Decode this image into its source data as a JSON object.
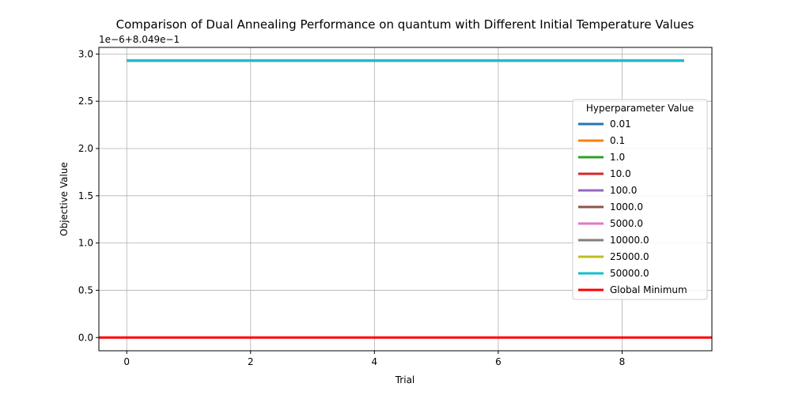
{
  "chart_data": {
    "type": "line",
    "title": "Comparison of Dual Annealing Performance on quantum with Different Initial Temperature Values",
    "xlabel": "Trial",
    "ylabel": "Objective Value",
    "offset_label": "1e−6+8.049e−1",
    "xlim": [
      -0.45,
      9.45
    ],
    "ylim": [
      -0.14,
      3.07
    ],
    "xticks": [
      0,
      2,
      4,
      6,
      8
    ],
    "xtick_labels": [
      "0",
      "2",
      "4",
      "6",
      "8"
    ],
    "yticks": [
      0.0,
      0.5,
      1.0,
      1.5,
      2.0,
      2.5,
      3.0
    ],
    "ytick_labels": [
      "0.0",
      "0.5",
      "1.0",
      "1.5",
      "2.0",
      "2.5",
      "3.0"
    ],
    "grid": true,
    "legend_title": "Hyperparameter Value",
    "legend_position": "center-right",
    "x": [
      0,
      1,
      2,
      3,
      4,
      5,
      6,
      7,
      8,
      9
    ],
    "series": [
      {
        "name": "0.01",
        "color": "#1f77b4",
        "values": [
          2.93,
          2.93,
          2.93,
          2.93,
          2.93,
          2.93,
          2.93,
          2.93,
          2.93,
          2.93
        ]
      },
      {
        "name": "0.1",
        "color": "#ff7f0e",
        "values": [
          2.93,
          2.93,
          2.93,
          2.93,
          2.93,
          2.93,
          2.93,
          2.93,
          2.93,
          2.93
        ]
      },
      {
        "name": "1.0",
        "color": "#2ca02c",
        "values": [
          2.93,
          2.93,
          2.93,
          2.93,
          2.93,
          2.93,
          2.93,
          2.93,
          2.93,
          2.93
        ]
      },
      {
        "name": "10.0",
        "color": "#d62728",
        "values": [
          2.93,
          2.93,
          2.93,
          2.93,
          2.93,
          2.93,
          2.93,
          2.93,
          2.93,
          2.93
        ]
      },
      {
        "name": "100.0",
        "color": "#9467bd",
        "values": [
          2.93,
          2.93,
          2.93,
          2.93,
          2.93,
          2.93,
          2.93,
          2.93,
          2.93,
          2.93
        ]
      },
      {
        "name": "1000.0",
        "color": "#8c564b",
        "values": [
          2.93,
          2.93,
          2.93,
          2.93,
          2.93,
          2.93,
          2.93,
          2.93,
          2.93,
          2.93
        ]
      },
      {
        "name": "5000.0",
        "color": "#e377c2",
        "values": [
          2.93,
          2.93,
          2.93,
          2.93,
          2.93,
          2.93,
          2.93,
          2.93,
          2.93,
          2.93
        ]
      },
      {
        "name": "10000.0",
        "color": "#7f7f7f",
        "values": [
          2.93,
          2.93,
          2.93,
          2.93,
          2.93,
          2.93,
          2.93,
          2.93,
          2.93,
          2.93
        ]
      },
      {
        "name": "25000.0",
        "color": "#bcbd22",
        "values": [
          2.93,
          2.93,
          2.93,
          2.93,
          2.93,
          2.93,
          2.93,
          2.93,
          2.93,
          2.93
        ]
      },
      {
        "name": "50000.0",
        "color": "#17becf",
        "values": [
          2.93,
          2.93,
          2.93,
          2.93,
          2.93,
          2.93,
          2.93,
          2.93,
          2.93,
          2.93
        ]
      }
    ],
    "reference_line": {
      "name": "Global Minimum",
      "color": "#ff0000",
      "y": 0.0
    }
  }
}
